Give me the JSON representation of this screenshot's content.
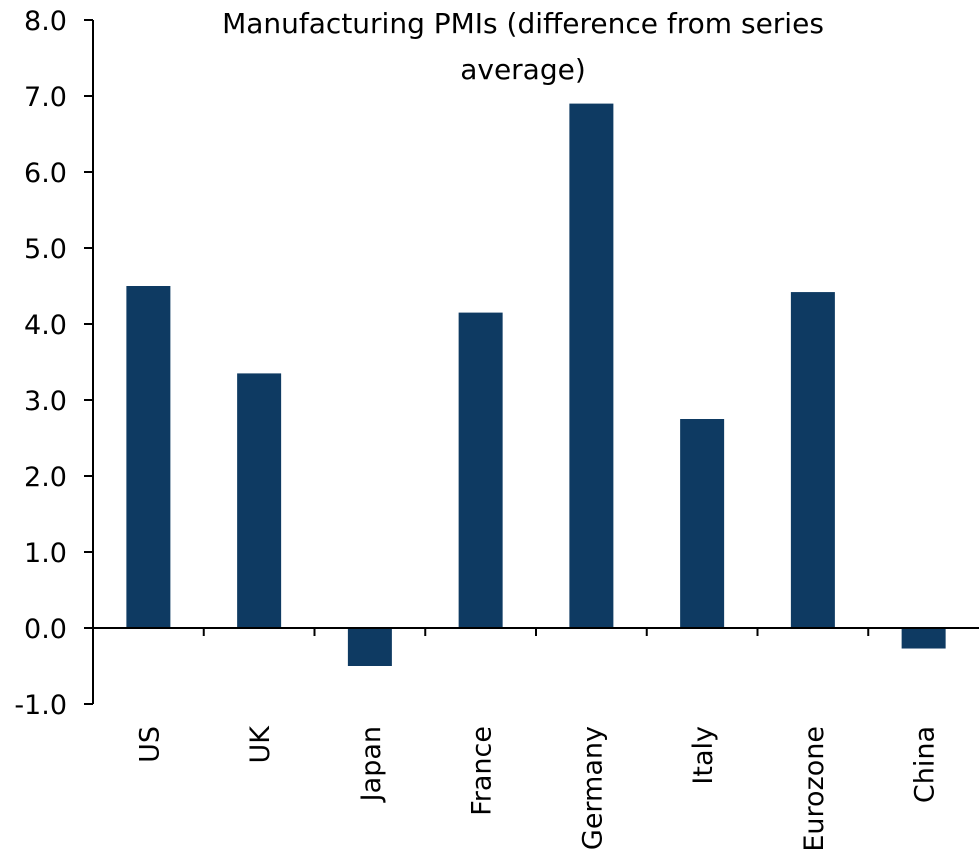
{
  "chart_data": {
    "type": "bar",
    "title": "Manufacturing PMIs (difference from series average)",
    "title_lines": [
      "Manufacturing PMIs (difference from series",
      "average)"
    ],
    "categories": [
      "US",
      "UK",
      "Japan",
      "France",
      "Germany",
      "Italy",
      "Eurozone",
      "China"
    ],
    "series": [
      {
        "values": [
          4.5,
          3.35,
          -0.5,
          4.15,
          6.9,
          2.75,
          4.42,
          -0.27
        ]
      }
    ],
    "ylim": [
      -1.0,
      8.0
    ],
    "yticks": [
      -1.0,
      0.0,
      1.0,
      2.0,
      3.0,
      4.0,
      5.0,
      6.0,
      7.0,
      8.0
    ],
    "ytick_labels": [
      "-1.0",
      "0.0",
      "1.0",
      "2.0",
      "3.0",
      "4.0",
      "5.0",
      "6.0",
      "7.0",
      "8.0"
    ],
    "xlabel": "",
    "ylabel": "",
    "grid": false,
    "legend": "none",
    "bar_color": "#0e3a62",
    "category_label_rotation": "vertical"
  }
}
